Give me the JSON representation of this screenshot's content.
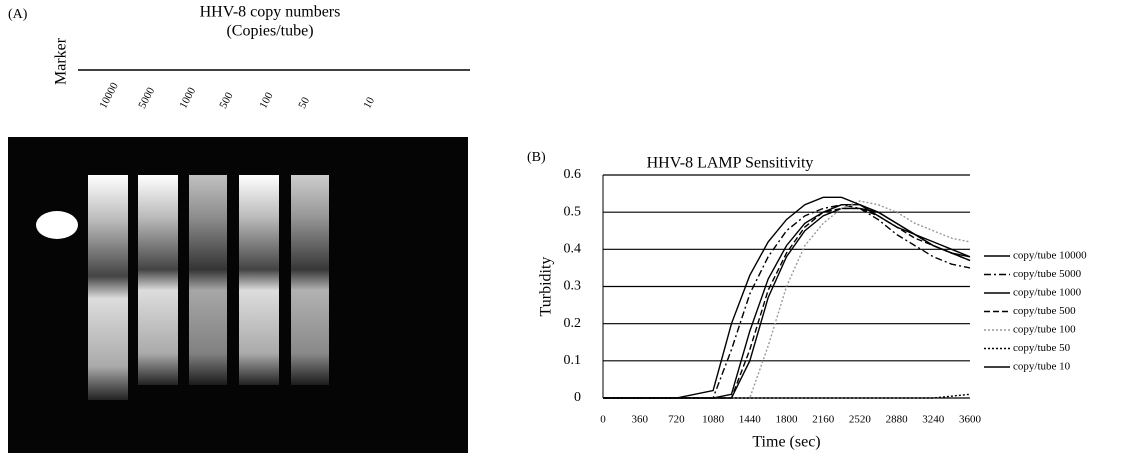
{
  "gel": {
    "panel": "(A)",
    "title": "HHV-8 copy numbers",
    "subtitle": "(Copies/tube)",
    "marker": "Marker",
    "lanes": [
      "10000",
      "5000",
      "1000",
      "500",
      "100",
      "50",
      "10"
    ]
  },
  "chart_data": {
    "type": "line",
    "panel": "(B)",
    "title": "HHV-8 LAMP Sensitivity",
    "y_label": "Turbidity",
    "x_label": "Time (sec)",
    "x": [
      0,
      360,
      720,
      1080,
      1260,
      1440,
      1620,
      1800,
      1980,
      2160,
      2340,
      2520,
      2700,
      2880,
      3060,
      3240,
      3420,
      3600
    ],
    "series": [
      {
        "name": "copy/tube 10000",
        "color": "#000000",
        "dash": "solid",
        "values": [
          0,
          0,
          0,
          0,
          0.01,
          0.18,
          0.32,
          0.41,
          0.47,
          0.5,
          0.52,
          0.52,
          0.5,
          0.47,
          0.44,
          0.41,
          0.39,
          0.38
        ]
      },
      {
        "name": "copy/tube 5000",
        "color": "#000000",
        "dash": "dashdot",
        "values": [
          0,
          0,
          0,
          0,
          0.13,
          0.28,
          0.38,
          0.45,
          0.49,
          0.51,
          0.52,
          0.51,
          0.48,
          0.44,
          0.41,
          0.38,
          0.36,
          0.35
        ]
      },
      {
        "name": "copy/tube 1000",
        "color": "#000000",
        "dash": "solid",
        "values": [
          0,
          0,
          0,
          0,
          0,
          0.1,
          0.27,
          0.38,
          0.45,
          0.49,
          0.51,
          0.51,
          0.5,
          0.47,
          0.44,
          0.41,
          0.39,
          0.37
        ]
      },
      {
        "name": "copy/tube 500",
        "color": "#000000",
        "dash": "dashed",
        "values": [
          0,
          0,
          0,
          0,
          0,
          0.13,
          0.29,
          0.39,
          0.46,
          0.5,
          0.51,
          0.51,
          0.49,
          0.46,
          0.43,
          0.41,
          0.39,
          0.37
        ]
      },
      {
        "name": "copy/tube 100",
        "color": "#999999",
        "dash": "dotted",
        "values": [
          0,
          0,
          0,
          0,
          0,
          0,
          0.14,
          0.3,
          0.41,
          0.47,
          0.51,
          0.53,
          0.52,
          0.5,
          0.47,
          0.45,
          0.43,
          0.42
        ]
      },
      {
        "name": "copy/tube 50",
        "color": "#000000",
        "dash": "dotted",
        "values": [
          0,
          0,
          0,
          0,
          0,
          0,
          0,
          0,
          0,
          0,
          0,
          0,
          0,
          0,
          0,
          0,
          0.005,
          0.01
        ]
      },
      {
        "name": "copy/tube 10",
        "color": "#000000",
        "dash": "solid",
        "values": [
          0,
          0,
          0,
          0.02,
          0.2,
          0.33,
          0.42,
          0.48,
          0.52,
          0.54,
          0.54,
          0.52,
          0.49,
          0.46,
          0.44,
          0.42,
          0.4,
          0.38
        ]
      }
    ],
    "xlim": [
      0,
      3600
    ],
    "xticks": [
      0,
      360,
      720,
      1080,
      1440,
      1800,
      2160,
      2520,
      2880,
      3240,
      3600
    ],
    "ylim": [
      0,
      0.6
    ],
    "yticks": [
      0,
      0.1,
      0.2,
      0.3,
      0.4,
      0.5,
      0.6
    ],
    "grid": true
  }
}
